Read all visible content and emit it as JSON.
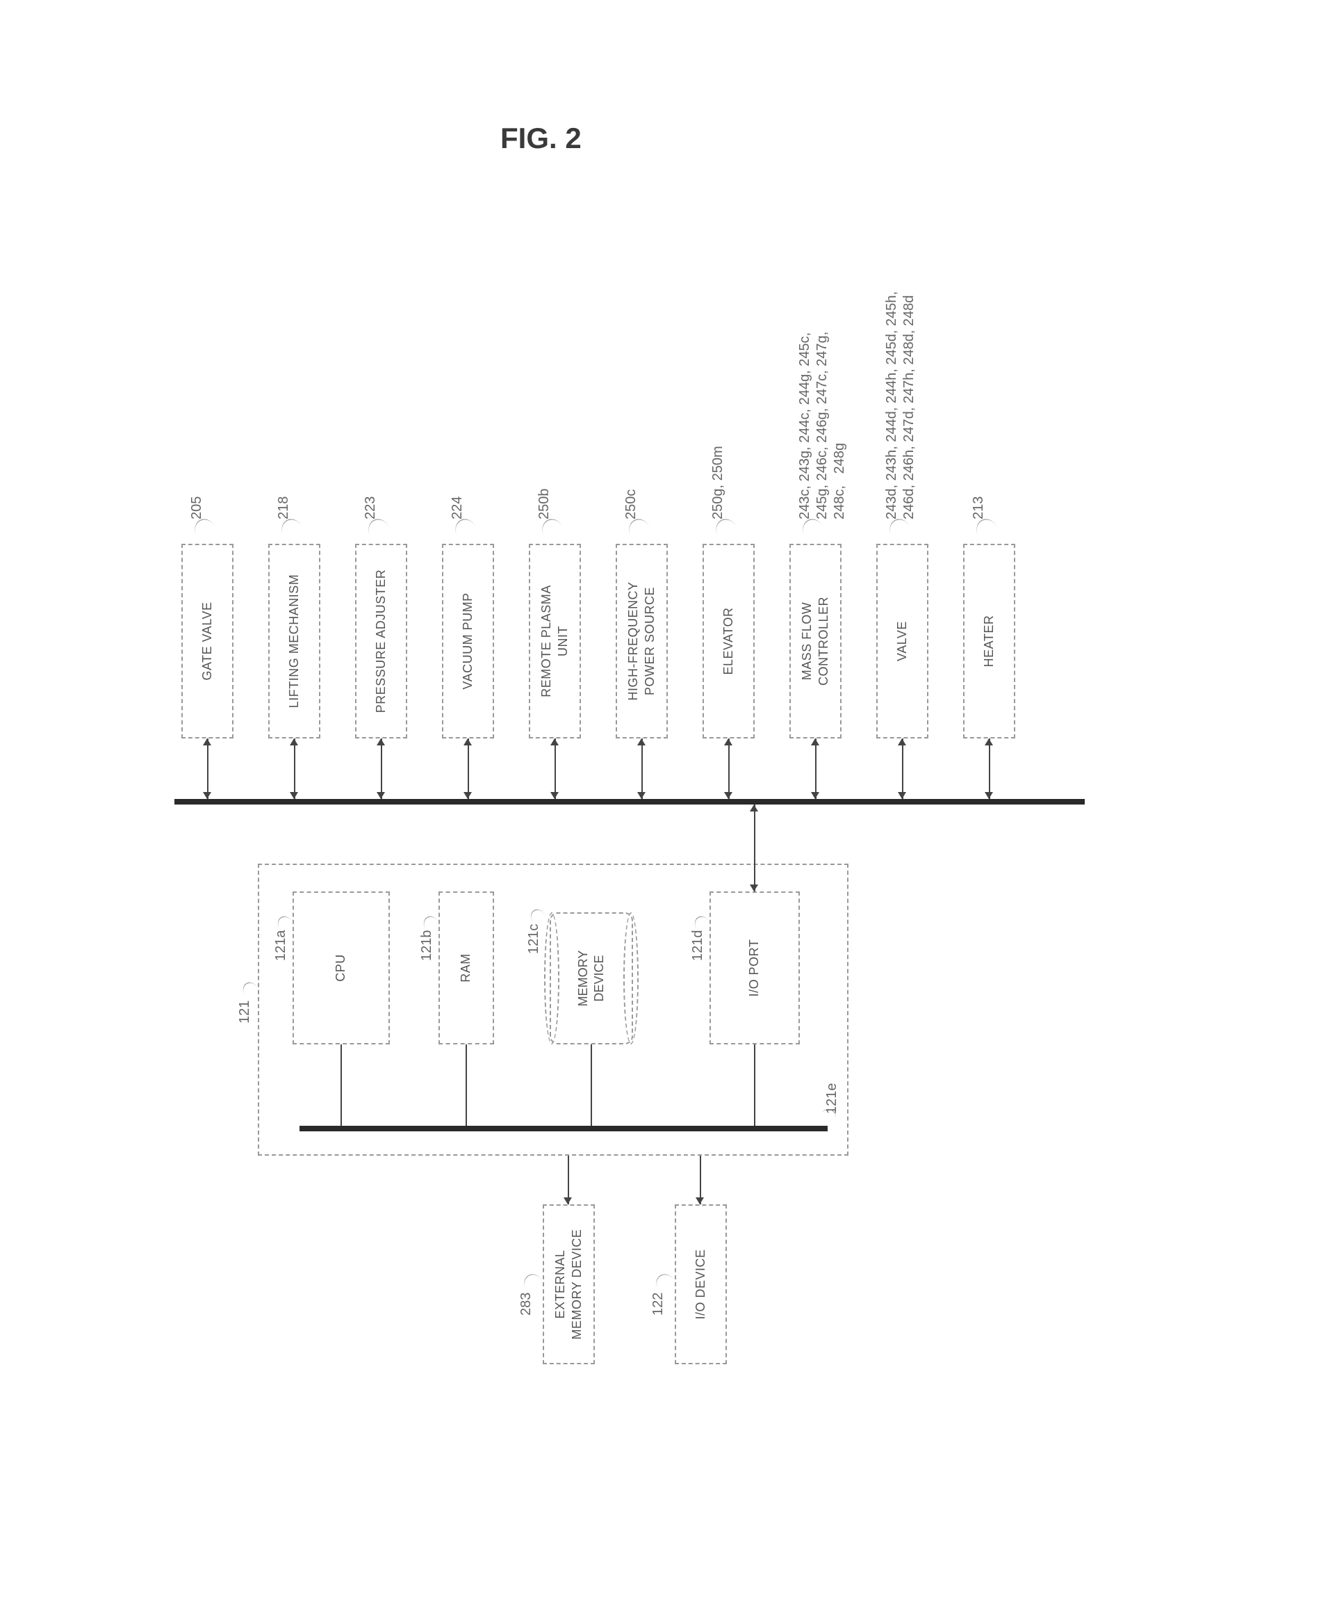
{
  "figure_title": "FIG. 2",
  "controller": {
    "ref": "121",
    "bus_ref": "121e",
    "cpu": {
      "label": "CPU",
      "ref": "121a"
    },
    "ram": {
      "label": "RAM",
      "ref": "121b"
    },
    "memory": {
      "label": "MEMORY\nDEVICE",
      "ref": "121c"
    },
    "ioport": {
      "label": "I/O PORT",
      "ref": "121d"
    }
  },
  "external": {
    "ext_memory": {
      "label": "EXTERNAL\nMEMORY DEVICE",
      "ref": "283"
    },
    "io_device": {
      "label": "I/O DEVICE",
      "ref": "122"
    }
  },
  "peripherals": [
    {
      "label": "GATE VALVE",
      "ref": "205"
    },
    {
      "label": "LIFTING MECHANISM",
      "ref": "218"
    },
    {
      "label": "PRESSURE ADJUSTER",
      "ref": "223"
    },
    {
      "label": "VACUUM PUMP",
      "ref": "224"
    },
    {
      "label": "REMOTE PLASMA\nUNIT",
      "ref": "250b"
    },
    {
      "label": "HIGH-FREQUENCY\nPOWER SOURCE",
      "ref": "250c"
    },
    {
      "label": "ELEVATOR",
      "ref": "250g, 250m"
    },
    {
      "label": "MASS FLOW\nCONTROLLER",
      "ref": "243c, 243g, 244c, 244g, 245c,\n245g, 246c, 246g, 247c, 247g,\n248c,   248g"
    },
    {
      "label": "VALVE",
      "ref": "243d, 243h, 244d, 244h, 245d, 245h,\n246d, 246h, 247d, 247h, 248d, 248d"
    },
    {
      "label": "HEATER",
      "ref": "213"
    }
  ],
  "style": {
    "box_border": "#999999",
    "bus_color": "#2a2a2a",
    "text_color": "#444444",
    "ref_color": "#666666",
    "background": "#ffffff",
    "periph_box_w": 280,
    "periph_box_h": 75,
    "periph_gap": 50
  }
}
